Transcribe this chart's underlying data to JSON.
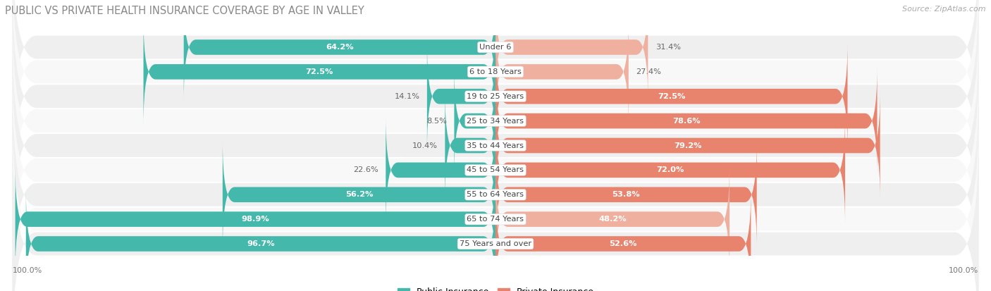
{
  "title": "PUBLIC VS PRIVATE HEALTH INSURANCE COVERAGE BY AGE IN VALLEY",
  "source": "Source: ZipAtlas.com",
  "categories": [
    "Under 6",
    "6 to 18 Years",
    "19 to 25 Years",
    "25 to 34 Years",
    "35 to 44 Years",
    "45 to 54 Years",
    "55 to 64 Years",
    "65 to 74 Years",
    "75 Years and over"
  ],
  "public_values": [
    64.2,
    72.5,
    14.1,
    8.5,
    10.4,
    22.6,
    56.2,
    98.9,
    96.7
  ],
  "private_values": [
    31.4,
    27.4,
    72.5,
    78.6,
    79.2,
    72.0,
    53.8,
    48.2,
    52.6
  ],
  "public_color": "#45b8ac",
  "private_color_high": "#e8836e",
  "private_color_low": "#f0b0a0",
  "bg_color": "#ffffff",
  "row_bg_even": "#efefef",
  "row_bg_odd": "#f8f8f8",
  "title_color": "#888888",
  "source_color": "#aaaaaa",
  "label_dark": "#666666",
  "label_white": "#ffffff",
  "bar_height": 0.62,
  "max_value": 100.0,
  "private_threshold": 50.0
}
